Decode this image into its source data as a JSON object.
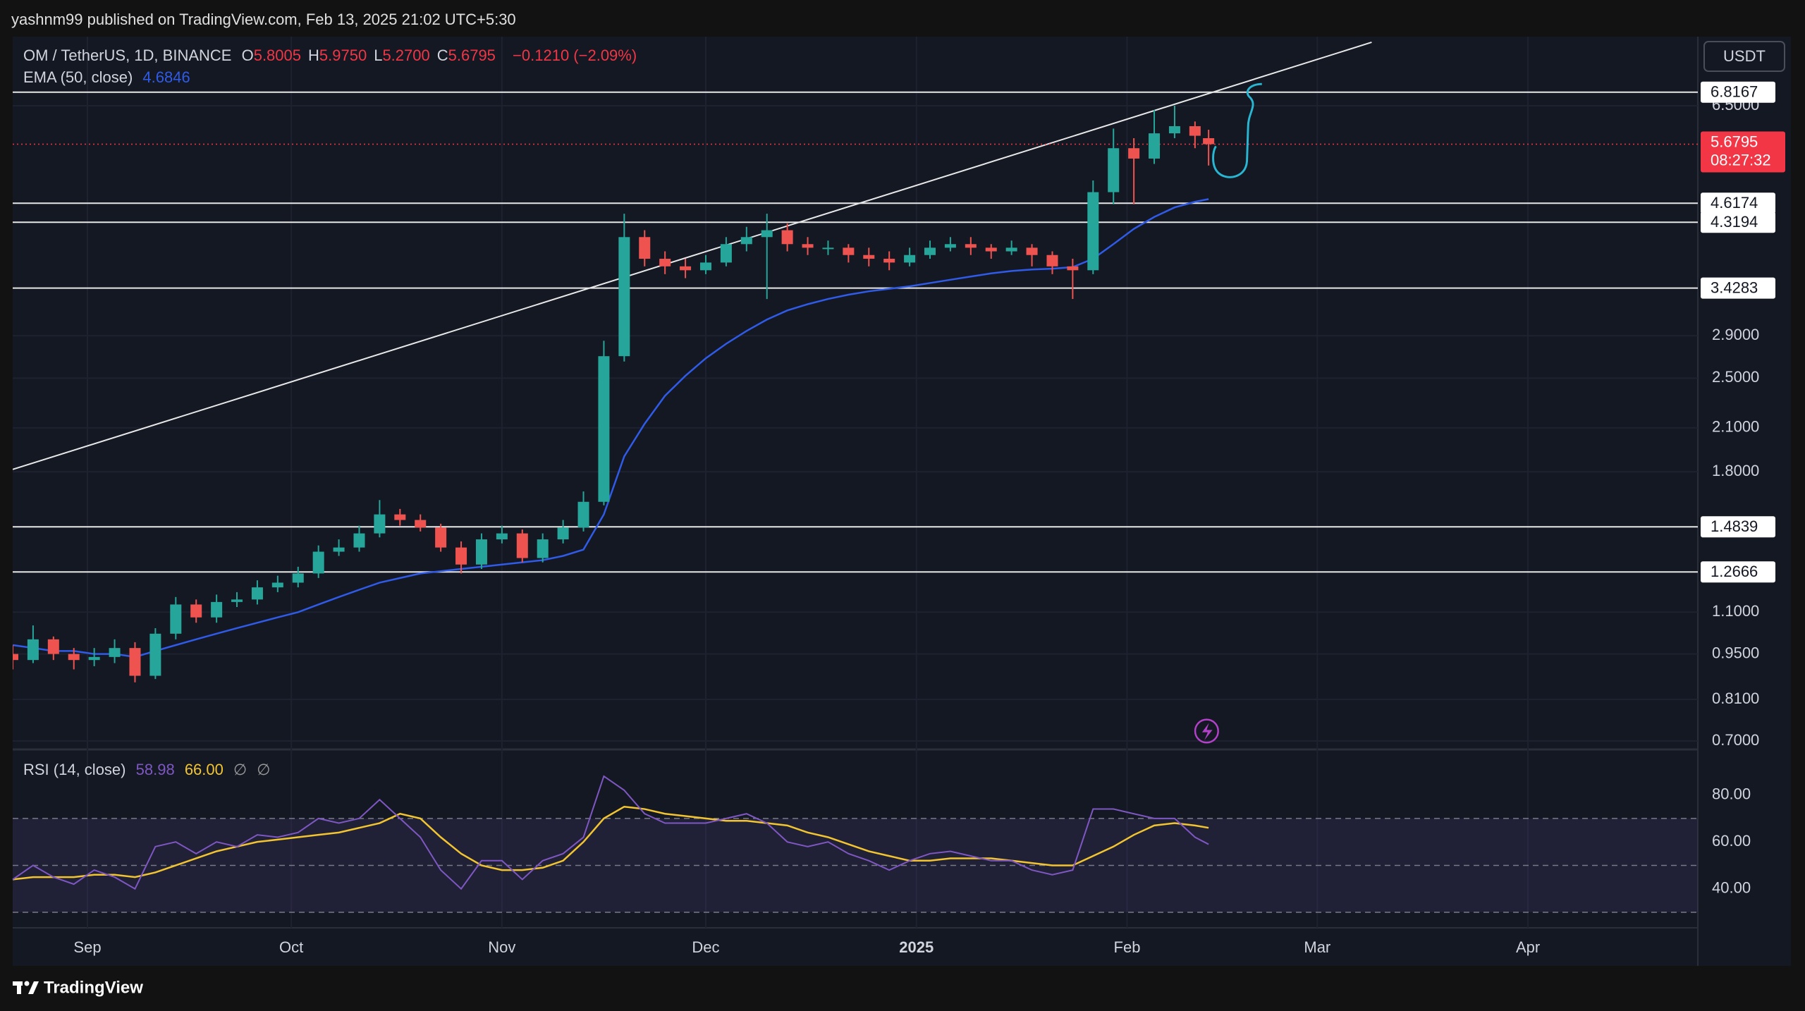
{
  "header": {
    "publisher": "yashnm99 published on TradingView.com, Feb 13, 2025 21:02 UTC+5:30",
    "symbol": "OM / TetherUS, 1D, BINANCE",
    "ohlc": [
      {
        "label": "O",
        "value": "5.8005"
      },
      {
        "label": "H",
        "value": "5.9750"
      },
      {
        "label": "L",
        "value": "5.2700"
      },
      {
        "label": "C",
        "value": "5.6795"
      }
    ],
    "change": "−0.1210 (−2.09%)",
    "currency": "USDT",
    "brand": "TradingView"
  },
  "chart_data": [
    {
      "type": "candlestick",
      "log_scale": true,
      "grid": true,
      "up_color": "#26a69a",
      "down_color": "#ef5350",
      "x": [
        "2024-08-21",
        "2024-08-24",
        "2024-08-27",
        "2024-08-30",
        "2024-09-02",
        "2024-09-05",
        "2024-09-08",
        "2024-09-11",
        "2024-09-14",
        "2024-09-17",
        "2024-09-20",
        "2024-09-23",
        "2024-09-26",
        "2024-09-29",
        "2024-10-02",
        "2024-10-05",
        "2024-10-08",
        "2024-10-11",
        "2024-10-14",
        "2024-10-17",
        "2024-10-20",
        "2024-10-23",
        "2024-10-26",
        "2024-10-29",
        "2024-11-01",
        "2024-11-04",
        "2024-11-07",
        "2024-11-10",
        "2024-11-13",
        "2024-11-16",
        "2024-11-19",
        "2024-11-22",
        "2024-11-25",
        "2024-11-28",
        "2024-12-01",
        "2024-12-04",
        "2024-12-07",
        "2024-12-10",
        "2024-12-13",
        "2024-12-16",
        "2024-12-19",
        "2024-12-22",
        "2024-12-25",
        "2024-12-28",
        "2024-12-31",
        "2025-01-03",
        "2025-01-06",
        "2025-01-09",
        "2025-01-12",
        "2025-01-15",
        "2025-01-18",
        "2025-01-21",
        "2025-01-24",
        "2025-01-27",
        "2025-01-30",
        "2025-02-02",
        "2025-02-05",
        "2025-02-08",
        "2025-02-11",
        "2025-02-13"
      ],
      "open": [
        0.95,
        0.93,
        1.0,
        0.95,
        0.93,
        0.94,
        0.97,
        0.88,
        1.02,
        1.13,
        1.08,
        1.14,
        1.15,
        1.2,
        1.22,
        1.26,
        1.36,
        1.38,
        1.45,
        1.55,
        1.52,
        1.48,
        1.38,
        1.3,
        1.42,
        1.45,
        1.33,
        1.42,
        1.48,
        1.62,
        2.7,
        4.1,
        3.8,
        3.7,
        3.65,
        3.75,
        4.0,
        4.1,
        4.2,
        4.0,
        3.95,
        3.95,
        3.85,
        3.8,
        3.75,
        3.85,
        3.95,
        4.0,
        3.95,
        3.9,
        3.95,
        3.85,
        3.7,
        3.65,
        4.8,
        5.6,
        5.4,
        5.9,
        6.05,
        5.8005
      ],
      "high": [
        0.98,
        1.05,
        1.01,
        0.97,
        0.97,
        1.0,
        0.99,
        1.04,
        1.16,
        1.15,
        1.17,
        1.18,
        1.23,
        1.25,
        1.29,
        1.39,
        1.42,
        1.49,
        1.63,
        1.58,
        1.55,
        1.5,
        1.41,
        1.45,
        1.49,
        1.47,
        1.45,
        1.52,
        1.68,
        2.85,
        4.45,
        4.2,
        3.9,
        3.8,
        3.85,
        4.1,
        4.25,
        4.45,
        4.3,
        4.1,
        4.05,
        4.0,
        3.95,
        3.9,
        3.95,
        4.05,
        4.1,
        4.1,
        4.0,
        4.05,
        4.0,
        3.9,
        3.8,
        5.0,
        6.0,
        5.8,
        6.4,
        6.5,
        6.15,
        5.975
      ],
      "low": [
        0.9,
        0.92,
        0.93,
        0.9,
        0.91,
        0.92,
        0.86,
        0.87,
        1.0,
        1.06,
        1.06,
        1.12,
        1.13,
        1.18,
        1.2,
        1.24,
        1.34,
        1.36,
        1.43,
        1.49,
        1.46,
        1.36,
        1.26,
        1.28,
        1.4,
        1.31,
        1.31,
        1.4,
        1.46,
        1.6,
        2.65,
        3.7,
        3.6,
        3.55,
        3.6,
        3.7,
        3.9,
        3.3,
        3.9,
        3.85,
        3.85,
        3.75,
        3.7,
        3.65,
        3.7,
        3.8,
        3.9,
        3.85,
        3.8,
        3.85,
        3.7,
        3.6,
        3.3,
        3.6,
        4.6,
        4.6,
        5.3,
        5.8,
        5.6,
        5.27
      ],
      "close": [
        0.93,
        1.0,
        0.95,
        0.93,
        0.94,
        0.97,
        0.88,
        1.02,
        1.13,
        1.08,
        1.14,
        1.15,
        1.2,
        1.22,
        1.26,
        1.36,
        1.38,
        1.45,
        1.55,
        1.52,
        1.48,
        1.38,
        1.3,
        1.42,
        1.45,
        1.33,
        1.42,
        1.48,
        1.62,
        2.7,
        4.1,
        3.8,
        3.7,
        3.65,
        3.75,
        4.0,
        4.1,
        4.2,
        4.0,
        3.95,
        3.95,
        3.85,
        3.8,
        3.75,
        3.85,
        3.95,
        4.0,
        3.95,
        3.9,
        3.95,
        3.85,
        3.7,
        3.65,
        4.8,
        5.6,
        5.4,
        5.9,
        6.05,
        5.85,
        5.6795
      ],
      "series": [
        {
          "name": "EMA (50, close)",
          "color": "#2f5be8",
          "values": [
            0.98,
            0.97,
            0.96,
            0.96,
            0.95,
            0.95,
            0.94,
            0.96,
            0.98,
            1.0,
            1.02,
            1.04,
            1.06,
            1.08,
            1.1,
            1.13,
            1.16,
            1.19,
            1.22,
            1.24,
            1.26,
            1.27,
            1.28,
            1.29,
            1.3,
            1.31,
            1.32,
            1.34,
            1.37,
            1.55,
            1.9,
            2.13,
            2.35,
            2.52,
            2.68,
            2.82,
            2.95,
            3.07,
            3.17,
            3.24,
            3.3,
            3.35,
            3.39,
            3.42,
            3.45,
            3.49,
            3.53,
            3.57,
            3.61,
            3.64,
            3.66,
            3.67,
            3.69,
            3.8,
            4.0,
            4.22,
            4.4,
            4.55,
            4.64,
            4.6846
          ]
        }
      ],
      "xlim": [
        "2024-08-21",
        "2025-04-26"
      ],
      "xticks": [
        {
          "value": "2024-09-01",
          "label": "Sep"
        },
        {
          "value": "2024-10-01",
          "label": "Oct"
        },
        {
          "value": "2024-11-01",
          "label": "Nov"
        },
        {
          "value": "2024-12-01",
          "label": "Dec"
        },
        {
          "value": "2025-01-01",
          "label": "2025"
        },
        {
          "value": "2025-02-01",
          "label": "Feb"
        },
        {
          "value": "2025-03-01",
          "label": "Mar"
        },
        {
          "value": "2025-04-01",
          "label": "Apr"
        }
      ],
      "ylim": [
        0.683,
        8.18
      ],
      "yticks": [
        {
          "value": 0.7,
          "label": "0.7000"
        },
        {
          "value": 0.81,
          "label": "0.8100"
        },
        {
          "value": 0.95,
          "label": "0.9500"
        },
        {
          "value": 1.1,
          "label": "1.1000"
        },
        {
          "value": 1.8,
          "label": "1.8000"
        },
        {
          "value": 2.1,
          "label": "2.1000"
        },
        {
          "value": 2.5,
          "label": "2.5000"
        },
        {
          "value": 2.9,
          "label": "2.9000"
        },
        {
          "value": 6.5,
          "label": "6.5000"
        }
      ],
      "levels": [
        6.8167,
        4.6174,
        4.3194,
        3.4283,
        1.4839,
        1.2666
      ],
      "trend_line": {
        "x": [
          "2024-08-21",
          "2025-03-09"
        ],
        "values": [
          1.815,
          8.12
        ]
      },
      "countdown": "08:27:32",
      "last_color": "#f23645"
    },
    {
      "type": "line",
      "ylim": [
        23.4,
        98.5
      ],
      "yticks": [
        {
          "value": 40,
          "label": "40.00"
        },
        {
          "value": 60,
          "label": "60.00"
        },
        {
          "value": 80,
          "label": "80.00"
        }
      ],
      "levels": [
        70,
        50,
        30
      ],
      "series": [
        {
          "name": "RSI (14, close)",
          "color": "#7e57c2",
          "values": [
            44,
            50,
            45,
            42,
            48,
            45,
            40,
            58,
            60,
            55,
            60,
            58,
            63,
            62,
            64,
            70,
            68,
            70,
            78,
            70,
            62,
            48,
            40,
            52,
            52,
            44,
            52,
            55,
            62,
            88,
            82,
            72,
            68,
            68,
            68,
            70,
            72,
            68,
            60,
            58,
            60,
            55,
            52,
            48,
            52,
            55,
            56,
            54,
            52,
            52,
            48,
            46,
            48,
            74,
            74,
            72,
            70,
            70,
            62,
            58.98
          ]
        },
        {
          "color": "#f2c530",
          "values": [
            44,
            45,
            45,
            45,
            46,
            46,
            45,
            47,
            50,
            53,
            56,
            58,
            60,
            61,
            62,
            63,
            64,
            66,
            68,
            72,
            70,
            62,
            55,
            50,
            48,
            48,
            49,
            52,
            60,
            70,
            75,
            74,
            72,
            71,
            70,
            69,
            69,
            68,
            67,
            64,
            62,
            59,
            56,
            54,
            52,
            52,
            53,
            53,
            53,
            52,
            51,
            50,
            50,
            54,
            58,
            63,
            67,
            68,
            67,
            66
          ],
          "value_labels": [
            null,
            null,
            null,
            null,
            null,
            null,
            null,
            null,
            null,
            null,
            null,
            null,
            null,
            null,
            null,
            null,
            null,
            null,
            null,
            null,
            null,
            null,
            null,
            null,
            null,
            null,
            null,
            null,
            null,
            null,
            null,
            null,
            null,
            null,
            null,
            null,
            null,
            null,
            null,
            null,
            null,
            null,
            null,
            null,
            null,
            null,
            null,
            null,
            null,
            null,
            null,
            null,
            null,
            null,
            null,
            null,
            null,
            null,
            null,
            "66.00"
          ]
        }
      ]
    }
  ]
}
